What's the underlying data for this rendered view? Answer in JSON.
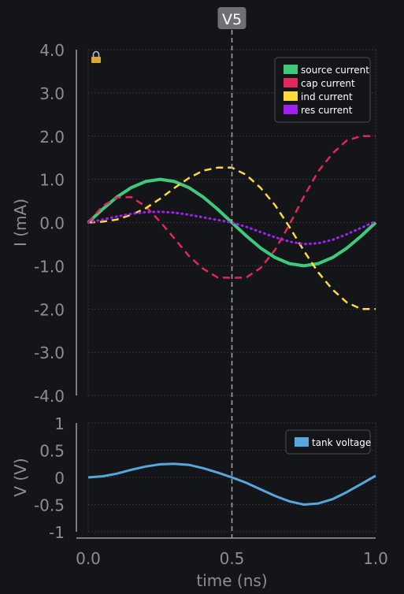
{
  "cursor": {
    "label": "V5",
    "x": 0.5
  },
  "colors": {
    "background": "#141518",
    "axis": "#9a9ba0",
    "grid": "#3a3c42",
    "text": "#8d8e93",
    "cursor": "#a7a8ad",
    "cursor_badge": "#6f7075",
    "legend_bg": "#141518",
    "legend_border": "#4a4c52",
    "lock": "#d9a642"
  },
  "icons": {
    "lock": "lock-icon"
  },
  "chart_data": [
    {
      "type": "line",
      "title": "",
      "xlabel": "",
      "ylabel": "I (mA)",
      "xlim": [
        0,
        1
      ],
      "ylim": [
        -4,
        4
      ],
      "y_ticks": [
        4,
        3,
        2,
        1,
        0,
        -1,
        -2,
        -3,
        -4
      ],
      "y_tick_labels": [
        "4.0",
        "3.0",
        "2.0",
        "1.0",
        "0.0",
        "-1.0",
        "-2.0",
        "-3.0",
        "-4.0"
      ],
      "grid": true,
      "legend_position": "top-right",
      "x": [
        0,
        0.05,
        0.1,
        0.15,
        0.2,
        0.25,
        0.3,
        0.35,
        0.4,
        0.45,
        0.5,
        0.55,
        0.6,
        0.65,
        0.7,
        0.75,
        0.8,
        0.85,
        0.9,
        0.95,
        1.0
      ],
      "series": [
        {
          "name": "source current",
          "color": "#3ec97c",
          "dash": "solid",
          "values": [
            0,
            0.31,
            0.59,
            0.81,
            0.95,
            1.0,
            0.95,
            0.81,
            0.59,
            0.31,
            0,
            -0.31,
            -0.59,
            -0.81,
            -0.95,
            -1.0,
            -0.95,
            -0.81,
            -0.59,
            -0.31,
            0
          ]
        },
        {
          "name": "cap current",
          "color": "#e0285a",
          "dash": "dashed",
          "values": [
            0,
            0.38,
            0.58,
            0.59,
            0.37,
            0.02,
            -0.37,
            -0.77,
            -1.07,
            -1.27,
            -1.28,
            -1.27,
            -1.05,
            -0.63,
            -0.05,
            0.6,
            1.18,
            1.6,
            1.9,
            2.0,
            2.0
          ]
        },
        {
          "name": "ind current",
          "color": "#ffd93b",
          "dash": "dashed",
          "values": [
            0,
            0.02,
            0.07,
            0.18,
            0.33,
            0.55,
            0.8,
            1.03,
            1.2,
            1.27,
            1.27,
            1.1,
            0.8,
            0.4,
            -0.1,
            -0.65,
            -1.15,
            -1.55,
            -1.85,
            -2.0,
            -2.0
          ]
        },
        {
          "name": "res current",
          "color": "#a020f0",
          "dash": "dotted",
          "values": [
            0,
            0.07,
            0.14,
            0.2,
            0.24,
            0.25,
            0.23,
            0.18,
            0.12,
            0.06,
            0,
            -0.1,
            -0.22,
            -0.34,
            -0.44,
            -0.5,
            -0.48,
            -0.4,
            -0.27,
            -0.12,
            0.03
          ]
        }
      ]
    },
    {
      "type": "line",
      "title": "",
      "xlabel": "time (ns)",
      "ylabel": "V (V)",
      "xlim": [
        0,
        1
      ],
      "ylim": [
        -1,
        1
      ],
      "y_ticks": [
        1,
        0.5,
        0,
        -0.5,
        -1
      ],
      "y_tick_labels": [
        "1",
        "0.5",
        "0",
        "-0.5",
        "-1"
      ],
      "x_ticks": [
        0,
        0.5,
        1
      ],
      "x_tick_labels": [
        "0.0",
        "0.5",
        "1.0"
      ],
      "grid": true,
      "legend_position": "top-right",
      "x": [
        0,
        0.05,
        0.1,
        0.15,
        0.2,
        0.25,
        0.3,
        0.35,
        0.4,
        0.45,
        0.5,
        0.55,
        0.6,
        0.65,
        0.7,
        0.75,
        0.8,
        0.85,
        0.9,
        0.95,
        1.0
      ],
      "series": [
        {
          "name": "tank voltage",
          "color": "#56a8dc",
          "dash": "solid",
          "values": [
            0,
            0.02,
            0.07,
            0.14,
            0.2,
            0.24,
            0.25,
            0.23,
            0.17,
            0.09,
            0,
            -0.1,
            -0.22,
            -0.34,
            -0.44,
            -0.5,
            -0.48,
            -0.4,
            -0.27,
            -0.12,
            0.03
          ]
        }
      ]
    }
  ]
}
